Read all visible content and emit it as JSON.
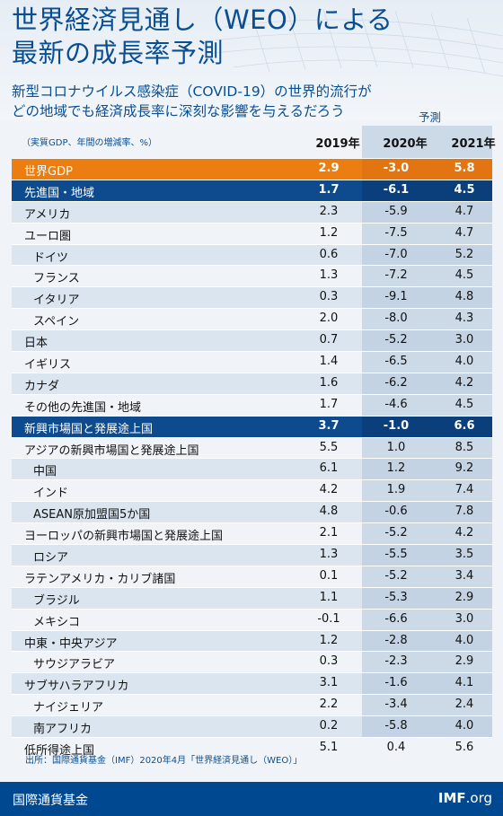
{
  "title_line1": "世界経済見通し（WEO）による",
  "title_line2": "最新の成長率予測",
  "subtitle_line1": "新型コロナウイルス感染症（COVID-19）の世界的流行が",
  "subtitle_line2": "どの地域でも経済成長率に深刻な影響を与えるだろう",
  "forecast_label": "予測",
  "unit_note": "（実質GDP、年間の増減率、%）",
  "source": "出所：国際通貨基金（IMF）2020年4月「世界経済見通し（WEO）」",
  "footer": {
    "org": "国際通貨基金",
    "site_main": "IMF",
    "site_tld": ".org"
  },
  "colors": {
    "title": "#0a4e92",
    "world": "#ec7d10",
    "group": "#0d4a8e",
    "footer": "#004990"
  },
  "chart_data": {
    "type": "table",
    "columns": [
      "2019年",
      "2020年",
      "2021年"
    ],
    "rows": [
      {
        "label": "世界GDP",
        "style": "world",
        "indent": 0,
        "values": [
          "2.9",
          "-3.0",
          "5.8"
        ]
      },
      {
        "label": "先進国・地域",
        "style": "group",
        "indent": 0,
        "values": [
          "1.7",
          "-6.1",
          "4.5"
        ]
      },
      {
        "label": "アメリカ",
        "style": "",
        "indent": 0,
        "values": [
          "2.3",
          "-5.9",
          "4.7"
        ]
      },
      {
        "label": "ユーロ圏",
        "style": "",
        "indent": 0,
        "values": [
          "1.2",
          "-7.5",
          "4.7"
        ]
      },
      {
        "label": "ドイツ",
        "style": "",
        "indent": 1,
        "values": [
          "0.6",
          "-7.0",
          "5.2"
        ]
      },
      {
        "label": "フランス",
        "style": "",
        "indent": 1,
        "values": [
          "1.3",
          "-7.2",
          "4.5"
        ]
      },
      {
        "label": "イタリア",
        "style": "",
        "indent": 1,
        "values": [
          "0.3",
          "-9.1",
          "4.8"
        ]
      },
      {
        "label": "スペイン",
        "style": "",
        "indent": 1,
        "values": [
          "2.0",
          "-8.0",
          "4.3"
        ]
      },
      {
        "label": "日本",
        "style": "",
        "indent": 0,
        "values": [
          "0.7",
          "-5.2",
          "3.0"
        ]
      },
      {
        "label": "イギリス",
        "style": "",
        "indent": 0,
        "values": [
          "1.4",
          "-6.5",
          "4.0"
        ]
      },
      {
        "label": "カナダ",
        "style": "",
        "indent": 0,
        "values": [
          "1.6",
          "-6.2",
          "4.2"
        ]
      },
      {
        "label": "その他の先進国・地域",
        "style": "",
        "indent": 0,
        "values": [
          "1.7",
          "-4.6",
          "4.5"
        ]
      },
      {
        "label": "新興市場国と発展途上国",
        "style": "group",
        "indent": 0,
        "values": [
          "3.7",
          "-1.0",
          "6.6"
        ]
      },
      {
        "label": "アジアの新興市場国と発展途上国",
        "style": "",
        "indent": 0,
        "values": [
          "5.5",
          "1.0",
          "8.5"
        ]
      },
      {
        "label": "中国",
        "style": "",
        "indent": 1,
        "values": [
          "6.1",
          "1.2",
          "9.2"
        ]
      },
      {
        "label": "インド",
        "style": "",
        "indent": 1,
        "values": [
          "4.2",
          "1.9",
          "7.4"
        ]
      },
      {
        "label": "ASEAN原加盟国5か国",
        "style": "",
        "indent": 1,
        "values": [
          "4.8",
          "-0.6",
          "7.8"
        ]
      },
      {
        "label": "ヨーロッパの新興市場国と発展途上国",
        "style": "",
        "indent": 0,
        "values": [
          "2.1",
          "-5.2",
          "4.2"
        ]
      },
      {
        "label": "ロシア",
        "style": "",
        "indent": 1,
        "values": [
          "1.3",
          "-5.5",
          "3.5"
        ]
      },
      {
        "label": "ラテンアメリカ・カリブ諸国",
        "style": "",
        "indent": 0,
        "values": [
          "0.1",
          "-5.2",
          "3.4"
        ]
      },
      {
        "label": "ブラジル",
        "style": "",
        "indent": 1,
        "values": [
          "1.1",
          "-5.3",
          "2.9"
        ]
      },
      {
        "label": "メキシコ",
        "style": "",
        "indent": 1,
        "values": [
          "-0.1",
          "-6.6",
          "3.0"
        ]
      },
      {
        "label": "中東・中央アジア",
        "style": "",
        "indent": 0,
        "values": [
          "1.2",
          "-2.8",
          "4.0"
        ]
      },
      {
        "label": "サウジアラビア",
        "style": "",
        "indent": 1,
        "values": [
          "0.3",
          "-2.3",
          "2.9"
        ]
      },
      {
        "label": "サブサハラアフリカ",
        "style": "",
        "indent": 0,
        "values": [
          "3.1",
          "-1.6",
          "4.1"
        ]
      },
      {
        "label": "ナイジェリア",
        "style": "",
        "indent": 1,
        "values": [
          "2.2",
          "-3.4",
          "2.4"
        ]
      },
      {
        "label": "南アフリカ",
        "style": "",
        "indent": 1,
        "values": [
          "0.2",
          "-5.8",
          "4.0"
        ]
      },
      {
        "label": "低所得途上国",
        "style": "",
        "indent": 0,
        "values": [
          "5.1",
          "0.4",
          "5.6"
        ]
      }
    ]
  }
}
